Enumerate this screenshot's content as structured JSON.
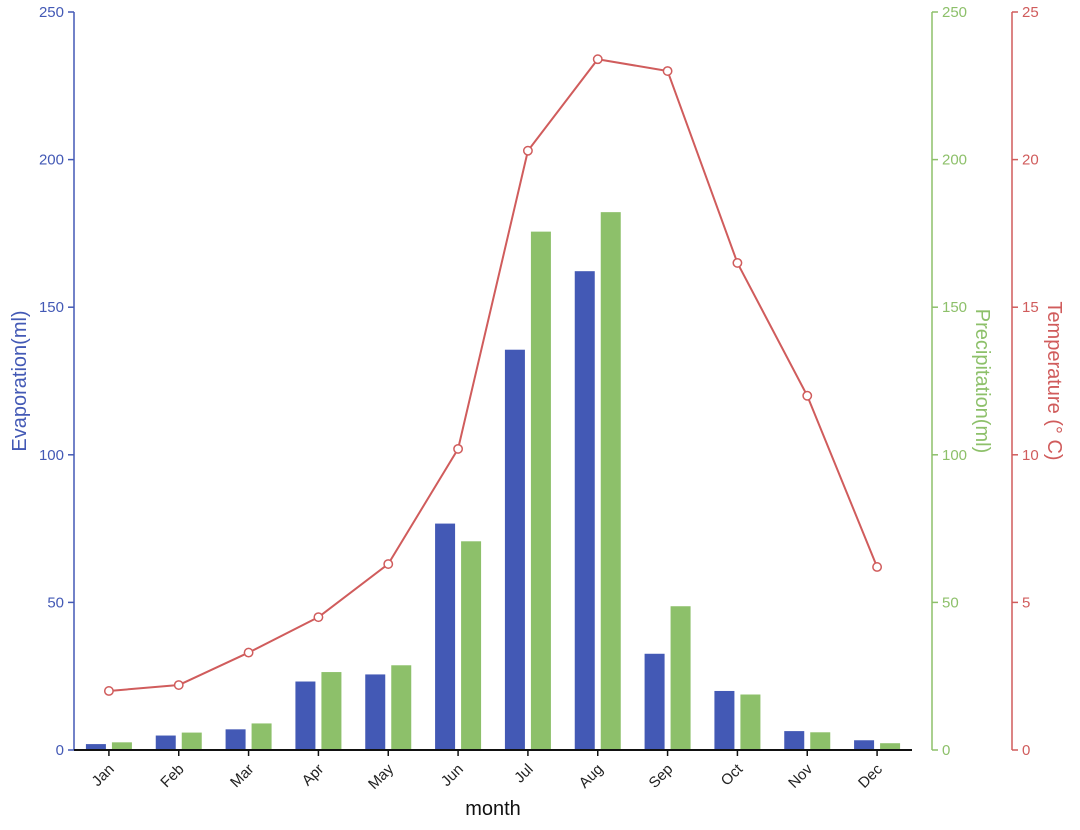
{
  "chart_data": {
    "type": "bar",
    "categories": [
      "Jan",
      "Feb",
      "Mar",
      "Apr",
      "May",
      "Jun",
      "Jul",
      "Aug",
      "Sep",
      "Oct",
      "Nov",
      "Dec"
    ],
    "xlabel": "month",
    "series": [
      {
        "name": "Evaporation",
        "kind": "bar",
        "axis": "left",
        "color": "#4359b5",
        "values": [
          2.0,
          4.9,
          7.0,
          23.2,
          25.6,
          76.7,
          135.6,
          162.2,
          32.6,
          20.0,
          6.4,
          3.3
        ]
      },
      {
        "name": "Precipitation",
        "kind": "bar",
        "axis": "right1",
        "color": "#8dc06a",
        "values": [
          2.6,
          5.9,
          9.0,
          26.4,
          28.7,
          70.7,
          175.6,
          182.2,
          48.7,
          18.8,
          6.0,
          2.3
        ]
      },
      {
        "name": "Temperature",
        "kind": "line",
        "axis": "right2",
        "color": "#d05c5c",
        "values": [
          2.0,
          2.2,
          3.3,
          4.5,
          6.3,
          10.2,
          20.3,
          23.4,
          23.0,
          16.5,
          12.0,
          6.2
        ]
      }
    ],
    "axes": {
      "left": {
        "label": "Evaporation(ml)",
        "range": [
          0,
          250
        ],
        "ticks": [
          "0",
          "50",
          "100",
          "150",
          "200",
          "250"
        ],
        "color": "#4359b5"
      },
      "right1": {
        "label": "Precipitation(ml)",
        "range": [
          0,
          250
        ],
        "ticks": [
          "0",
          "50",
          "100",
          "150",
          "200",
          "250"
        ],
        "color": "#8dc06a"
      },
      "right2": {
        "label": "Temperature (° C)",
        "range": [
          0,
          25
        ],
        "ticks": [
          "0",
          "5",
          "10",
          "15",
          "20",
          "25"
        ],
        "color": "#d05c5c"
      }
    },
    "grid": false,
    "legend": "none"
  }
}
